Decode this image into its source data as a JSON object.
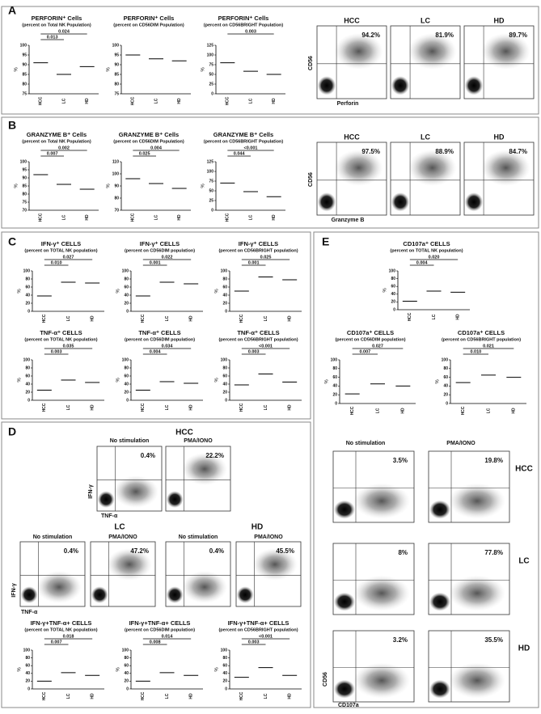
{
  "groups": [
    "HCC",
    "LC",
    "HD"
  ],
  "y_label": "%",
  "panels": {
    "A": {
      "label": "A",
      "plots": [
        {
          "title": "PERFORIN⁺ Cells",
          "subtitle": "(percent on Total NK Population)",
          "ylim": [
            75,
            100
          ],
          "yticks": [
            75,
            80,
            85,
            90,
            95,
            100
          ],
          "medians": [
            91,
            85,
            89
          ],
          "pvalues": [
            "0.024",
            "0.013"
          ]
        },
        {
          "title": "PERFORIN⁺ Cells",
          "subtitle": "(percent on CD56DIM Population)",
          "ylim": [
            75,
            100
          ],
          "yticks": [
            75,
            80,
            85,
            90,
            95,
            100
          ],
          "medians": [
            95,
            93,
            92
          ],
          "pvalues": []
        },
        {
          "title": "PERFORIN⁺ Cells",
          "subtitle": "(percent on CD56BRIGHT Population)",
          "ylim": [
            0,
            125
          ],
          "yticks": [
            0,
            25,
            50,
            75,
            100,
            125
          ],
          "medians": [
            80,
            58,
            50
          ],
          "pvalues": [
            "0.003"
          ]
        }
      ],
      "flow": {
        "x_label": "Perforin",
        "y_label": "CD56",
        "pcts": [
          "94.2%",
          "81.9%",
          "89.7%"
        ]
      }
    },
    "B": {
      "label": "B",
      "plots": [
        {
          "title": "GRANZYME B⁺ Cells",
          "subtitle": "(percent on Total NK Population)",
          "ylim": [
            70,
            100
          ],
          "yticks": [
            70,
            75,
            80,
            85,
            90,
            95,
            100
          ],
          "medians": [
            92,
            86,
            83
          ],
          "pvalues": [
            "0.002",
            "0.007"
          ]
        },
        {
          "title": "GRANZYME B⁺ Cells",
          "subtitle": "(percent on CD56DIM Population)",
          "ylim": [
            70,
            110
          ],
          "yticks": [
            70,
            80,
            90,
            100,
            110
          ],
          "medians": [
            96,
            92,
            88
          ],
          "pvalues": [
            "0.004",
            "0.025"
          ]
        },
        {
          "title": "GRANZYME B⁺ Cells",
          "subtitle": "(percent on CD56BRIGHT Population)",
          "ylim": [
            0,
            125
          ],
          "yticks": [
            0,
            25,
            50,
            75,
            100,
            125
          ],
          "medians": [
            70,
            48,
            35
          ],
          "pvalues": [
            "<0.001",
            "0.044"
          ]
        }
      ],
      "flow": {
        "x_label": "Granzyme B",
        "y_label": "CD56",
        "pcts": [
          "97.5%",
          "88.9%",
          "84.7%"
        ]
      }
    },
    "C": {
      "label": "C",
      "plots": [
        {
          "title": "IFN-γ⁺ CELLS",
          "subtitle": "(percent on TOTAL NK population)",
          "ylim": [
            0,
            100
          ],
          "yticks": [
            0,
            20,
            40,
            60,
            80,
            100
          ],
          "medians": [
            38,
            72,
            70
          ],
          "pvalues": [
            "0.027",
            "0.010"
          ]
        },
        {
          "title": "IFN-γ⁺ CELLS",
          "subtitle": "(percent on CD56DIM population)",
          "ylim": [
            0,
            100
          ],
          "yticks": [
            0,
            20,
            40,
            60,
            80,
            100
          ],
          "medians": [
            38,
            72,
            68
          ],
          "pvalues": [
            "0.022",
            "0.001"
          ]
        },
        {
          "title": "IFN-γ⁺ CELLS",
          "subtitle": "(percent on CD56BRIGHT population)",
          "ylim": [
            0,
            100
          ],
          "yticks": [
            0,
            20,
            40,
            60,
            80,
            100
          ],
          "medians": [
            50,
            85,
            78
          ],
          "pvalues": [
            "0.025",
            "0.001"
          ]
        },
        {
          "title": "TNF-α⁺ CELLS",
          "subtitle": "(percent on TOTAL NK population)",
          "ylim": [
            0,
            100
          ],
          "yticks": [
            0,
            20,
            40,
            60,
            80,
            100
          ],
          "medians": [
            25,
            50,
            44
          ],
          "pvalues": [
            "0.035",
            "0.003"
          ]
        },
        {
          "title": "TNF-α⁺ CELLS",
          "subtitle": "(percent on CD56DIM population)",
          "ylim": [
            0,
            100
          ],
          "yticks": [
            0,
            20,
            40,
            60,
            80,
            100
          ],
          "medians": [
            25,
            46,
            42
          ],
          "pvalues": [
            "0.034",
            "0.004"
          ]
        },
        {
          "title": "TNF-α⁺ CELLS",
          "subtitle": "(percent on CD56BRIGHT population)",
          "ylim": [
            0,
            100
          ],
          "yticks": [
            0,
            20,
            40,
            60,
            80,
            100
          ],
          "medians": [
            38,
            65,
            45
          ],
          "pvalues": [
            "<0.001",
            "0.003"
          ]
        }
      ]
    },
    "D": {
      "label": "D",
      "conditions": [
        "No stimulation",
        "PMA/IONO"
      ],
      "flow": {
        "x_label": "TNF-α",
        "y_label": "IFN-γ",
        "pcts": [
          [
            "0.4%",
            "22.2%"
          ],
          [
            "0.4%",
            "47.2%"
          ],
          [
            "0.4%",
            "45.5%"
          ]
        ]
      },
      "plots": [
        {
          "title": "IFN-γ+TNF-α+ CELLS",
          "subtitle": "(percent on TOTAL NK population)",
          "ylim": [
            0,
            100
          ],
          "yticks": [
            0,
            20,
            40,
            60,
            80,
            100
          ],
          "medians": [
            20,
            42,
            35
          ],
          "pvalues": [
            "0.018",
            "0.007"
          ]
        },
        {
          "title": "IFN-γ+TNF-α+ CELLS",
          "subtitle": "(percent on CD56DIM population)",
          "ylim": [
            0,
            100
          ],
          "yticks": [
            0,
            20,
            40,
            60,
            80,
            100
          ],
          "medians": [
            20,
            42,
            35
          ],
          "pvalues": [
            "0.014",
            "0.008"
          ]
        },
        {
          "title": "IFN-γ+TNF-α+ CELLS",
          "subtitle": "(percent on CD56BRIGHT population)",
          "ylim": [
            0,
            100
          ],
          "yticks": [
            0,
            20,
            40,
            60,
            80,
            100
          ],
          "medians": [
            30,
            55,
            35
          ],
          "pvalues": [
            "<0.001",
            "0.003"
          ]
        }
      ]
    },
    "E": {
      "label": "E",
      "conditions": [
        "No stimulation",
        "PMA/IONO"
      ],
      "plots": [
        {
          "title": "CD107a⁺ CELLS",
          "subtitle": "(percent on TOTAL NK population)",
          "ylim": [
            0,
            100
          ],
          "yticks": [
            0,
            20,
            40,
            60,
            80,
            100
          ],
          "medians": [
            22,
            48,
            45
          ],
          "pvalues": [
            "0.020",
            "0.004"
          ]
        },
        {
          "title": "CD107a⁺ CELLS",
          "subtitle": "(percent on CD56DIM population)",
          "ylim": [
            0,
            100
          ],
          "yticks": [
            0,
            20,
            40,
            60,
            80,
            100
          ],
          "medians": [
            22,
            45,
            40
          ],
          "pvalues": [
            "0.027",
            "0.007"
          ]
        },
        {
          "title": "CD107a⁺ CELLS",
          "subtitle": "(percent on CD56BRIGHT population)",
          "ylim": [
            0,
            100
          ],
          "yticks": [
            0,
            20,
            40,
            60,
            80,
            100
          ],
          "medians": [
            48,
            65,
            60
          ],
          "pvalues": [
            "0.021",
            "0.010"
          ]
        }
      ],
      "flow": {
        "x_label": "CD107a",
        "y_label": "CD56",
        "pcts": [
          [
            "3.5%",
            "19.8%"
          ],
          [
            "8%",
            "77.8%"
          ],
          [
            "3.2%",
            "35.5%"
          ]
        ]
      }
    }
  }
}
